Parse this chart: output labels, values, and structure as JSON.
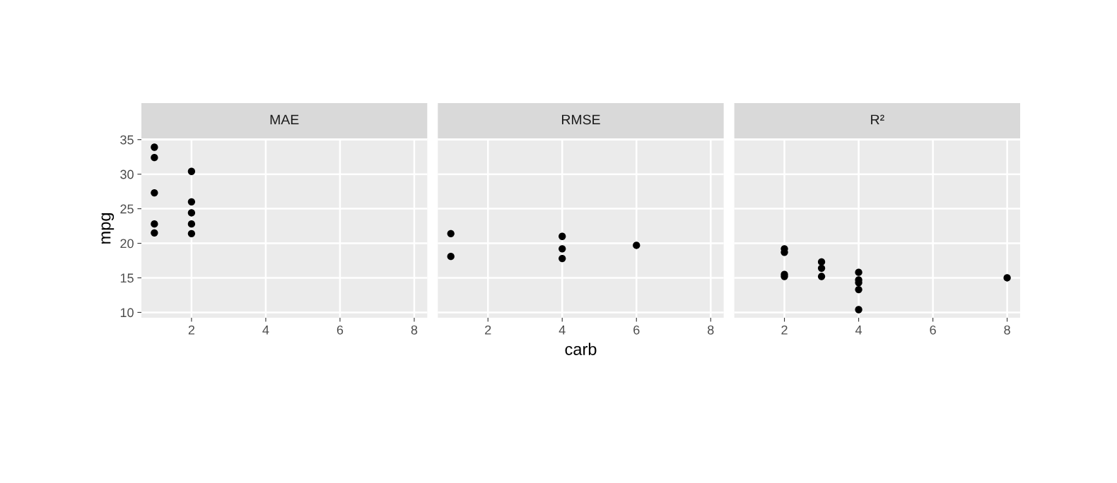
{
  "chart_data": [
    {
      "type": "scatter",
      "title": "MAE",
      "ylabel": "mpg",
      "xlim": [
        0.65,
        8.35
      ],
      "xticks": [
        2,
        4,
        6,
        8
      ],
      "ylim": [
        9.225,
        35.075
      ],
      "yticks": [
        10,
        15,
        20,
        25,
        30,
        35
      ],
      "grid": true,
      "marker": "circle",
      "series": [
        {
          "color": "#000000",
          "x": [
            1,
            1,
            1,
            1,
            1,
            2,
            2,
            2,
            2,
            2
          ],
          "values": [
            33.9,
            32.4,
            27.3,
            22.8,
            21.5,
            30.4,
            26.0,
            24.4,
            22.8,
            21.4
          ]
        }
      ]
    },
    {
      "type": "scatter",
      "title": "RMSE",
      "xlabel": "carb",
      "xlim": [
        0.65,
        8.35
      ],
      "xticks": [
        2,
        4,
        6,
        8
      ],
      "ylim": [
        9.225,
        35.075
      ],
      "yticks": [
        10,
        15,
        20,
        25,
        30,
        35
      ],
      "tick_labels": "x",
      "grid": true,
      "marker": "circle",
      "series": [
        {
          "color": "#000000",
          "x": [
            1,
            1,
            4,
            4,
            4,
            6
          ],
          "values": [
            21.4,
            18.1,
            21.0,
            19.2,
            17.8,
            19.7
          ]
        }
      ]
    },
    {
      "type": "scatter",
      "title": "R²",
      "xlim": [
        0.65,
        8.35
      ],
      "xticks": [
        2,
        4,
        6,
        8
      ],
      "ylim": [
        9.225,
        35.075
      ],
      "yticks": [
        10,
        15,
        20,
        25,
        30,
        35
      ],
      "tick_labels": "x",
      "grid": true,
      "marker": "circle",
      "series": [
        {
          "color": "#000000",
          "x": [
            2,
            2,
            2,
            2,
            3,
            3,
            3,
            4,
            4,
            4,
            4,
            4,
            8
          ],
          "values": [
            19.2,
            18.7,
            15.5,
            15.2,
            17.3,
            16.4,
            15.2,
            15.8,
            14.7,
            14.3,
            13.3,
            10.4,
            15.0
          ]
        }
      ]
    }
  ]
}
